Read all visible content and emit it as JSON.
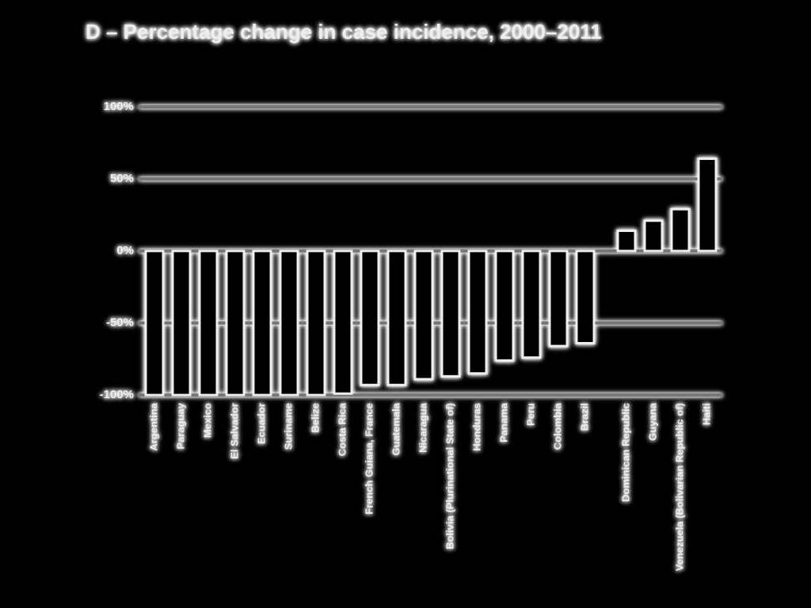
{
  "chart_data": {
    "type": "bar",
    "title": "D – Percentage change in case incidence, 2000–2011",
    "categories": [
      "Argentina",
      "Paraguay",
      "Mexico",
      "El Salvador",
      "Ecuador",
      "Suriname",
      "Belize",
      "Costa Rica",
      "French Guiana, France",
      "Guatemala",
      "Nicaragua",
      "Bolivia (Plurinational State of)",
      "Honduras",
      "Panama",
      "Peru",
      "Colombia",
      "Brazil",
      "Dominican Republic",
      "Guyana",
      "Venezuela (Bolivarian Republic of)",
      "Haiti"
    ],
    "values": [
      -100,
      -100,
      -100,
      -100,
      -100,
      -100,
      -100,
      -99,
      -93,
      -93,
      -89,
      -87,
      -85,
      -76,
      -74,
      -66,
      -64,
      14,
      21,
      29,
      64
    ],
    "color": "#000000",
    "ylim": [
      -100,
      100
    ],
    "yticks": [
      {
        "value": -100,
        "label": "-100%"
      },
      {
        "value": -50,
        "label": "-50%"
      },
      {
        "value": 0,
        "label": "0%"
      },
      {
        "value": 50,
        "label": "50%"
      },
      {
        "value": 100,
        "label": "100%"
      }
    ],
    "grid": true
  }
}
